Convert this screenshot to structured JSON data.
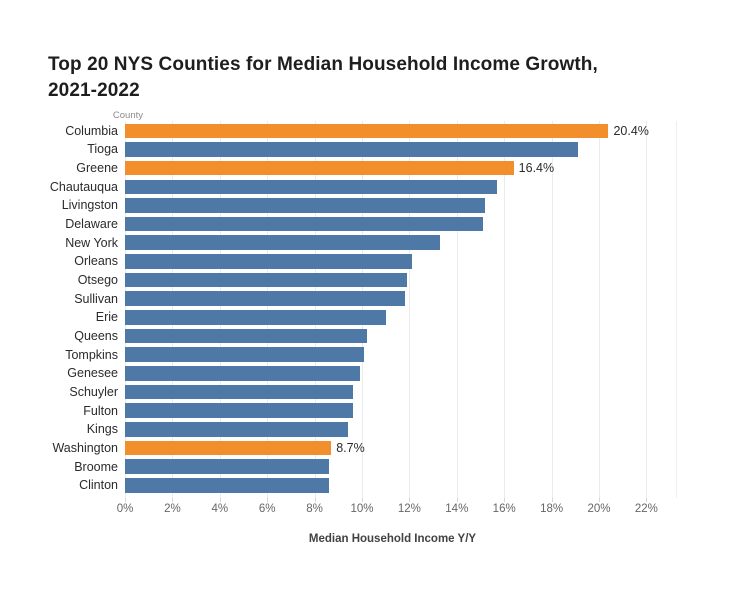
{
  "title": {
    "line1": "Top 20 NYS Counties for Median Household Income Growth,",
    "line2": "2021-2022"
  },
  "chart_data": {
    "type": "bar",
    "orientation": "horizontal",
    "title": "Top 20 NYS Counties for Median Household Income Growth, 2021-2022",
    "category_field_label": "County",
    "xlabel": "Median Household Income Y/Y",
    "ylabel": "County",
    "xlim": [
      0,
      22
    ],
    "x_tick_step": 2,
    "x_tick_labels": [
      "0%",
      "2%",
      "4%",
      "6%",
      "8%",
      "10%",
      "12%",
      "14%",
      "16%",
      "18%",
      "20%",
      "22%"
    ],
    "grid": true,
    "legend": "none",
    "series": [
      {
        "county": "Columbia",
        "value": 20.4,
        "highlighted": true,
        "data_label": "20.4%"
      },
      {
        "county": "Tioga",
        "value": 19.1,
        "highlighted": false,
        "data_label": null
      },
      {
        "county": "Greene",
        "value": 16.4,
        "highlighted": true,
        "data_label": "16.4%"
      },
      {
        "county": "Chautauqua",
        "value": 15.7,
        "highlighted": false,
        "data_label": null
      },
      {
        "county": "Livingston",
        "value": 15.2,
        "highlighted": false,
        "data_label": null
      },
      {
        "county": "Delaware",
        "value": 15.1,
        "highlighted": false,
        "data_label": null
      },
      {
        "county": "New York",
        "value": 13.3,
        "highlighted": false,
        "data_label": null
      },
      {
        "county": "Orleans",
        "value": 12.1,
        "highlighted": false,
        "data_label": null
      },
      {
        "county": "Otsego",
        "value": 11.9,
        "highlighted": false,
        "data_label": null
      },
      {
        "county": "Sullivan",
        "value": 11.8,
        "highlighted": false,
        "data_label": null
      },
      {
        "county": "Erie",
        "value": 11.0,
        "highlighted": false,
        "data_label": null
      },
      {
        "county": "Queens",
        "value": 10.2,
        "highlighted": false,
        "data_label": null
      },
      {
        "county": "Tompkins",
        "value": 10.1,
        "highlighted": false,
        "data_label": null
      },
      {
        "county": "Genesee",
        "value": 9.9,
        "highlighted": false,
        "data_label": null
      },
      {
        "county": "Schuyler",
        "value": 9.6,
        "highlighted": false,
        "data_label": null
      },
      {
        "county": "Fulton",
        "value": 9.6,
        "highlighted": false,
        "data_label": null
      },
      {
        "county": "Kings",
        "value": 9.4,
        "highlighted": false,
        "data_label": null
      },
      {
        "county": "Washington",
        "value": 8.7,
        "highlighted": true,
        "data_label": "8.7%"
      },
      {
        "county": "Broome",
        "value": 8.6,
        "highlighted": false,
        "data_label": null
      },
      {
        "county": "Clinton",
        "value": 8.6,
        "highlighted": false,
        "data_label": null
      }
    ],
    "colors": {
      "bar_default": "#4e79a7",
      "bar_highlight": "#f28e2b",
      "gridline": "#ebebeb",
      "tick_label": "#666666",
      "category_label": "#2b2b2b",
      "title": "#1e1e1e",
      "axis_title": "#424242",
      "field_label": "#8c8c8c"
    }
  }
}
